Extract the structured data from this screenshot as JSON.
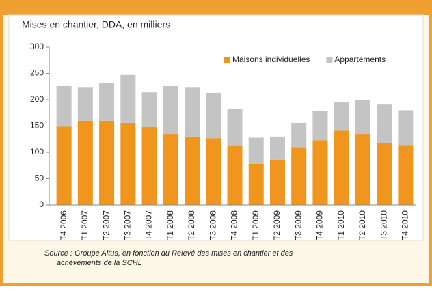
{
  "chart_data": {
    "type": "stacked_bar",
    "subtitle": "Mises en chantier, DDA, en milliers",
    "categories": [
      "T4 2006",
      "T1 2007",
      "T2 2007",
      "T3 2007",
      "T4 2007",
      "T1 2008",
      "T2 2008",
      "T3 2008",
      "T4 2008",
      "T1 2009",
      "T2 2009",
      "T3 2009",
      "T4 2009",
      "T1 2010",
      "T2 2010",
      "T3 2010",
      "T4 2010"
    ],
    "series": [
      {
        "name": "Maisons individuelles",
        "color": "#f0961e",
        "values": [
          149,
          160,
          160,
          156,
          148,
          135,
          130,
          127,
          113,
          78,
          86,
          110,
          123,
          141,
          135,
          117,
          114
        ]
      },
      {
        "name": "Appartements",
        "color": "#c4c4c4",
        "values": [
          77,
          63,
          72,
          91,
          66,
          91,
          93,
          86,
          69,
          50,
          44,
          46,
          55,
          55,
          64,
          75,
          66
        ]
      }
    ],
    "ylim": [
      0,
      300
    ],
    "yticks": [
      0,
      50,
      100,
      150,
      200,
      250,
      300
    ],
    "legend": "top-right",
    "source": [
      "Source : Groupe Altus, en fonction du Relevé des mises en chantier et des",
      "achèvements de la SCHL"
    ]
  }
}
